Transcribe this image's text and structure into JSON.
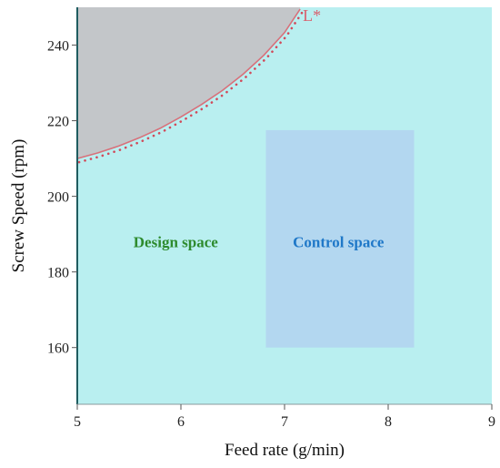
{
  "chart_data": {
    "type": "area",
    "title": "",
    "xlabel": "Feed rate (g/min)",
    "ylabel": "Screw Speed (rpm)",
    "xlim": [
      5,
      9
    ],
    "ylim": [
      145,
      250
    ],
    "xticks": [
      5,
      6,
      7,
      8,
      9
    ],
    "yticks": [
      160,
      180,
      200,
      220,
      240
    ],
    "boundary": {
      "x": [
        5.0,
        5.2,
        5.4,
        5.6,
        5.8,
        6.0,
        6.2,
        6.4,
        6.6,
        6.8,
        7.0,
        7.15
      ],
      "y": [
        210.0,
        211.5,
        213.3,
        215.5,
        218.0,
        221.0,
        224.3,
        228.0,
        232.3,
        237.3,
        243.3,
        249.5
      ]
    },
    "regions": [
      {
        "name": "Design space",
        "label_at": [
          5.95,
          188
        ],
        "color": "#2e8b2e"
      },
      {
        "name": "Control space",
        "x_range": [
          6.82,
          8.25
        ],
        "y_range": [
          160,
          217.5
        ],
        "label_at": [
          7.52,
          188
        ],
        "color": "#1f78c8"
      }
    ],
    "marker_label": "L*",
    "colors": {
      "design_fill": "#b9eff0",
      "failure_fill": "#c3c6c9",
      "control_fill": "#b3d7f0",
      "boundary_line": "#d9707a",
      "boundary_dots": "#d14a5a",
      "marker_color": "#d9606d"
    }
  }
}
